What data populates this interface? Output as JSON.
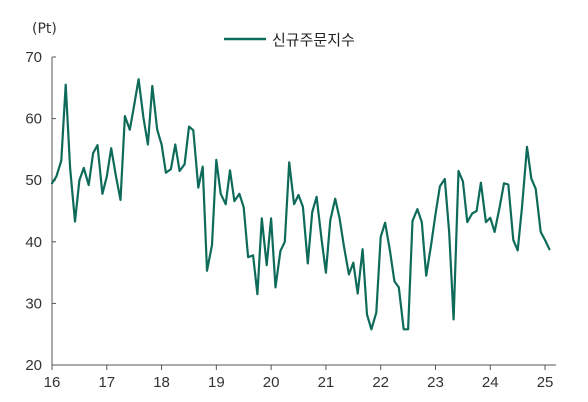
{
  "chart_data": {
    "type": "line",
    "unit_label": "(Pt)",
    "series": [
      {
        "name": "신규주문지수",
        "color": "#0e6b5a",
        "points": [
          [
            16.0,
            49.5
          ],
          [
            16.08,
            50.6
          ],
          [
            16.17,
            53.2
          ],
          [
            16.25,
            65.5
          ],
          [
            16.33,
            52.0
          ],
          [
            16.42,
            43.3
          ],
          [
            16.5,
            50.0
          ],
          [
            16.58,
            52.0
          ],
          [
            16.67,
            49.2
          ],
          [
            16.75,
            54.4
          ],
          [
            16.83,
            55.7
          ],
          [
            16.92,
            47.8
          ],
          [
            17.0,
            50.6
          ],
          [
            17.08,
            55.2
          ],
          [
            17.17,
            50.5
          ],
          [
            17.25,
            46.8
          ],
          [
            17.33,
            60.4
          ],
          [
            17.42,
            58.2
          ],
          [
            17.5,
            62.2
          ],
          [
            17.58,
            66.4
          ],
          [
            17.67,
            60.1
          ],
          [
            17.75,
            55.8
          ],
          [
            17.83,
            65.3
          ],
          [
            17.92,
            58.2
          ],
          [
            18.0,
            55.8
          ],
          [
            18.08,
            51.2
          ],
          [
            18.17,
            51.8
          ],
          [
            18.25,
            55.8
          ],
          [
            18.33,
            51.5
          ],
          [
            18.42,
            52.6
          ],
          [
            18.5,
            58.7
          ],
          [
            18.58,
            58.1
          ],
          [
            18.67,
            48.8
          ],
          [
            18.75,
            52.2
          ],
          [
            18.83,
            35.3
          ],
          [
            18.92,
            39.5
          ],
          [
            19.0,
            53.3
          ],
          [
            19.08,
            47.8
          ],
          [
            19.17,
            46.1
          ],
          [
            19.25,
            51.6
          ],
          [
            19.33,
            46.6
          ],
          [
            19.42,
            47.8
          ],
          [
            19.5,
            45.6
          ],
          [
            19.58,
            37.5
          ],
          [
            19.67,
            37.8
          ],
          [
            19.75,
            31.5
          ],
          [
            19.83,
            43.8
          ],
          [
            19.92,
            36.2
          ],
          [
            20.0,
            43.8
          ],
          [
            20.08,
            32.6
          ],
          [
            20.17,
            38.5
          ],
          [
            20.25,
            40.0
          ],
          [
            20.33,
            52.9
          ],
          [
            20.42,
            46.1
          ],
          [
            20.5,
            47.6
          ],
          [
            20.58,
            45.7
          ],
          [
            20.67,
            36.5
          ],
          [
            20.75,
            44.8
          ],
          [
            20.83,
            47.3
          ],
          [
            20.92,
            40.5
          ],
          [
            21.0,
            35.0
          ],
          [
            21.08,
            43.5
          ],
          [
            21.17,
            47.0
          ],
          [
            21.25,
            43.8
          ],
          [
            21.33,
            39.2
          ],
          [
            21.42,
            34.7
          ],
          [
            21.5,
            36.6
          ],
          [
            21.58,
            31.6
          ],
          [
            21.67,
            38.8
          ],
          [
            21.75,
            28.2
          ],
          [
            21.83,
            25.8
          ],
          [
            21.92,
            28.5
          ],
          [
            22.0,
            40.8
          ],
          [
            22.08,
            43.1
          ],
          [
            22.17,
            38.5
          ],
          [
            22.25,
            33.6
          ],
          [
            22.33,
            32.6
          ],
          [
            22.42,
            25.8
          ],
          [
            22.5,
            25.8
          ],
          [
            22.58,
            43.4
          ],
          [
            22.67,
            45.3
          ],
          [
            22.75,
            43.2
          ],
          [
            22.83,
            34.5
          ],
          [
            22.92,
            39.5
          ],
          [
            23.0,
            44.5
          ],
          [
            23.08,
            49.0
          ],
          [
            23.17,
            50.2
          ],
          [
            23.25,
            41.5
          ],
          [
            23.33,
            27.4
          ],
          [
            23.42,
            51.5
          ],
          [
            23.5,
            49.8
          ],
          [
            23.58,
            43.2
          ],
          [
            23.67,
            44.6
          ],
          [
            23.75,
            45.0
          ],
          [
            23.83,
            49.6
          ],
          [
            23.92,
            43.2
          ],
          [
            24.0,
            43.9
          ],
          [
            24.08,
            41.6
          ],
          [
            24.17,
            45.6
          ],
          [
            24.25,
            49.5
          ],
          [
            24.33,
            49.3
          ],
          [
            24.42,
            40.3
          ],
          [
            24.5,
            38.6
          ],
          [
            24.58,
            45.6
          ],
          [
            24.67,
            55.4
          ],
          [
            24.75,
            50.3
          ],
          [
            24.83,
            48.6
          ],
          [
            24.92,
            41.6
          ],
          [
            25.0,
            40.3
          ],
          [
            25.08,
            38.8
          ]
        ]
      }
    ],
    "xlim": [
      16,
      25.2
    ],
    "ylim": [
      20,
      70
    ],
    "x_ticks": [
      16,
      17,
      18,
      19,
      20,
      21,
      22,
      23,
      24,
      25
    ],
    "x_tick_labels": [
      "16",
      "17",
      "18",
      "19",
      "20",
      "21",
      "22",
      "23",
      "24",
      "25"
    ],
    "y_ticks": [
      20,
      30,
      40,
      50,
      60,
      70
    ],
    "y_tick_labels": [
      "20",
      "30",
      "40",
      "50",
      "60",
      "70"
    ],
    "grid": false,
    "legend_position": "top-center"
  }
}
